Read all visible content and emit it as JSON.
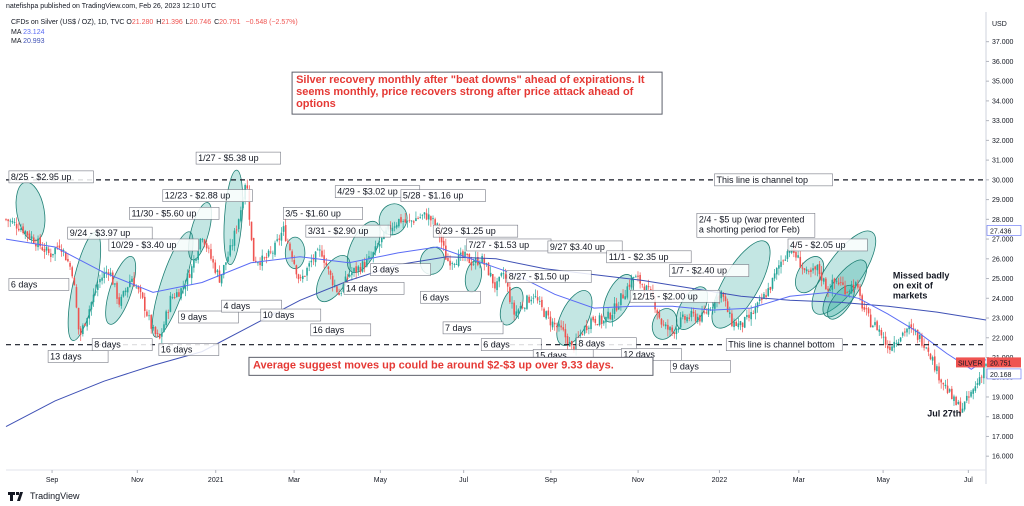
{
  "header": {
    "published": "natefishpa published on TradingView.com, Feb 26, 2023 12:10 UTC",
    "symbol": "CFDs on Silver (US$ / OZ), 1D, TVC",
    "ohlc": [
      {
        "k": "O",
        "v": "21.280"
      },
      {
        "k": "H",
        "v": "21.396"
      },
      {
        "k": "L",
        "v": "20.746"
      },
      {
        "k": "C",
        "v": "20.751"
      }
    ],
    "change": "−0.548 (−2.57%)",
    "ma1_label": "MA",
    "ma1_value": "23.124",
    "ma2_label": "MA",
    "ma2_value": "20.993"
  },
  "footer": {
    "brand": "TradingView"
  },
  "colors": {
    "up": "#26a69a",
    "down": "#ef5350",
    "ma_fast": "#5b6cf5",
    "ma_slow": "#3f51b5",
    "ellipse_fill": "#26a69a",
    "red_text": "#e53935",
    "price_tag": "#ef5350"
  },
  "chart_data": {
    "type": "candlestick",
    "currency_label": "USD",
    "ylim": [
      15.3,
      38.2
    ],
    "y_ticks": [
      "16.000",
      "17.000",
      "18.000",
      "19.000",
      "20.000",
      "21.000",
      "22.000",
      "23.000",
      "24.000",
      "25.000",
      "26.000",
      "27.000",
      "28.000",
      "29.000",
      "30.000",
      "31.000",
      "32.000",
      "33.000",
      "34.000",
      "35.000",
      "36.000",
      "37.000"
    ],
    "x_ticks": [
      {
        "label": "Sep",
        "t": 0.047
      },
      {
        "label": "Nov",
        "t": 0.134
      },
      {
        "label": "2021",
        "t": 0.214
      },
      {
        "label": "Mar",
        "t": 0.294
      },
      {
        "label": "May",
        "t": 0.382
      },
      {
        "label": "Jul",
        "t": 0.467
      },
      {
        "label": "Sep",
        "t": 0.556
      },
      {
        "label": "Nov",
        "t": 0.645
      },
      {
        "label": "2022",
        "t": 0.728
      },
      {
        "label": "Mar",
        "t": 0.809
      },
      {
        "label": "May",
        "t": 0.895
      },
      {
        "label": "Jul",
        "t": 0.982
      }
    ],
    "price_path": [
      [
        0.0,
        28.0
      ],
      [
        0.015,
        27.6
      ],
      [
        0.03,
        26.9
      ],
      [
        0.045,
        26.2
      ],
      [
        0.055,
        26.8
      ],
      [
        0.068,
        25.3
      ],
      [
        0.075,
        22.0
      ],
      [
        0.083,
        23.2
      ],
      [
        0.095,
        24.9
      ],
      [
        0.105,
        25.5
      ],
      [
        0.116,
        23.7
      ],
      [
        0.128,
        25.1
      ],
      [
        0.14,
        23.8
      ],
      [
        0.15,
        22.3
      ],
      [
        0.157,
        21.9
      ],
      [
        0.168,
        24.0
      ],
      [
        0.18,
        24.5
      ],
      [
        0.19,
        25.6
      ],
      [
        0.2,
        27.3
      ],
      [
        0.21,
        25.9
      ],
      [
        0.218,
        25.0
      ],
      [
        0.23,
        26.6
      ],
      [
        0.24,
        28.6
      ],
      [
        0.245,
        30.2
      ],
      [
        0.252,
        26.0
      ],
      [
        0.263,
        25.9
      ],
      [
        0.273,
        26.4
      ],
      [
        0.283,
        27.5
      ],
      [
        0.292,
        26.2
      ],
      [
        0.3,
        24.8
      ],
      [
        0.312,
        25.9
      ],
      [
        0.322,
        26.4
      ],
      [
        0.33,
        25.2
      ],
      [
        0.34,
        24.2
      ],
      [
        0.35,
        25.2
      ],
      [
        0.362,
        25.6
      ],
      [
        0.372,
        26.0
      ],
      [
        0.383,
        26.9
      ],
      [
        0.392,
        27.6
      ],
      [
        0.402,
        28.0
      ],
      [
        0.41,
        27.8
      ],
      [
        0.42,
        28.1
      ],
      [
        0.43,
        28.2
      ],
      [
        0.44,
        27.6
      ],
      [
        0.45,
        25.9
      ],
      [
        0.46,
        26.0
      ],
      [
        0.468,
        26.1
      ],
      [
        0.476,
        25.8
      ],
      [
        0.485,
        26.0
      ],
      [
        0.492,
        25.4
      ],
      [
        0.5,
        24.5
      ],
      [
        0.508,
        25.3
      ],
      [
        0.518,
        23.2
      ],
      [
        0.528,
        23.7
      ],
      [
        0.538,
        24.2
      ],
      [
        0.546,
        23.5
      ],
      [
        0.556,
        22.8
      ],
      [
        0.568,
        22.3
      ],
      [
        0.578,
        21.4
      ],
      [
        0.588,
        22.3
      ],
      [
        0.598,
        23.0
      ],
      [
        0.61,
        22.8
      ],
      [
        0.62,
        23.4
      ],
      [
        0.63,
        24.2
      ],
      [
        0.64,
        25.1
      ],
      [
        0.65,
        24.7
      ],
      [
        0.66,
        24.0
      ],
      [
        0.67,
        22.6
      ],
      [
        0.68,
        22.3
      ],
      [
        0.69,
        22.9
      ],
      [
        0.7,
        23.1
      ],
      [
        0.71,
        23.0
      ],
      [
        0.72,
        23.7
      ],
      [
        0.73,
        24.3
      ],
      [
        0.74,
        22.8
      ],
      [
        0.75,
        22.6
      ],
      [
        0.76,
        23.1
      ],
      [
        0.77,
        23.8
      ],
      [
        0.78,
        24.6
      ],
      [
        0.79,
        25.8
      ],
      [
        0.8,
        26.6
      ],
      [
        0.808,
        26.0
      ],
      [
        0.818,
        25.1
      ],
      [
        0.828,
        25.5
      ],
      [
        0.838,
        24.5
      ],
      [
        0.848,
        24.9
      ],
      [
        0.858,
        24.4
      ],
      [
        0.866,
        24.8
      ],
      [
        0.874,
        23.6
      ],
      [
        0.882,
        22.8
      ],
      [
        0.89,
        22.5
      ],
      [
        0.9,
        21.5
      ],
      [
        0.91,
        22.0
      ],
      [
        0.92,
        22.5
      ],
      [
        0.93,
        22.1
      ],
      [
        0.94,
        21.6
      ],
      [
        0.95,
        20.3
      ],
      [
        0.96,
        19.4
      ],
      [
        0.968,
        18.7
      ],
      [
        0.975,
        18.4
      ],
      [
        0.982,
        18.9
      ],
      [
        0.99,
        19.6
      ],
      [
        1.0,
        20.75
      ]
    ],
    "ma_fast": [
      [
        0.0,
        27.0
      ],
      [
        0.05,
        26.6
      ],
      [
        0.1,
        25.3
      ],
      [
        0.15,
        24.3
      ],
      [
        0.2,
        24.8
      ],
      [
        0.25,
        25.8
      ],
      [
        0.3,
        26.1
      ],
      [
        0.35,
        25.8
      ],
      [
        0.4,
        26.3
      ],
      [
        0.44,
        26.6
      ],
      [
        0.48,
        25.9
      ],
      [
        0.52,
        25.2
      ],
      [
        0.56,
        24.2
      ],
      [
        0.6,
        23.5
      ],
      [
        0.64,
        23.6
      ],
      [
        0.68,
        23.6
      ],
      [
        0.72,
        23.4
      ],
      [
        0.76,
        23.5
      ],
      [
        0.8,
        24.1
      ],
      [
        0.84,
        24.3
      ],
      [
        0.87,
        24.0
      ],
      [
        0.9,
        23.2
      ],
      [
        0.93,
        22.3
      ],
      [
        0.96,
        21.2
      ],
      [
        0.985,
        20.4
      ],
      [
        1.0,
        20.9
      ]
    ],
    "ma_slow": [
      [
        0.0,
        17.5
      ],
      [
        0.05,
        18.8
      ],
      [
        0.1,
        19.8
      ],
      [
        0.15,
        20.6
      ],
      [
        0.2,
        21.3
      ],
      [
        0.25,
        22.6
      ],
      [
        0.3,
        23.9
      ],
      [
        0.35,
        24.9
      ],
      [
        0.4,
        25.7
      ],
      [
        0.45,
        26.1
      ],
      [
        0.5,
        26.0
      ],
      [
        0.55,
        25.5
      ],
      [
        0.6,
        25.2
      ],
      [
        0.65,
        24.9
      ],
      [
        0.7,
        24.5
      ],
      [
        0.75,
        24.1
      ],
      [
        0.8,
        23.9
      ],
      [
        0.85,
        23.8
      ],
      [
        0.9,
        23.6
      ],
      [
        0.95,
        23.3
      ],
      [
        1.0,
        22.9
      ]
    ],
    "price_tags": [
      {
        "text": "SILVER",
        "value": 20.751,
        "color": "#ef5350"
      },
      {
        "text": "20.751",
        "value": 20.751,
        "color": "#ef5350"
      },
      {
        "text": "27.436",
        "value": 27.436,
        "color": "#ffffff"
      },
      {
        "text": "20.168",
        "value": 20.168,
        "color": "#ffffff"
      }
    ],
    "channel_lines": [
      {
        "value": 30.0,
        "label": "This line is channel top"
      },
      {
        "value": 21.65,
        "label": "This line is channel bottom"
      }
    ],
    "up_labels": [
      {
        "text": "8/25 - $2.95 up",
        "t": 0.005,
        "y": 30.05
      },
      {
        "text": "9/24 - $3.97 up",
        "t": 0.065,
        "y": 27.2
      },
      {
        "text": "10/29 - $3.40 up",
        "t": 0.107,
        "y": 26.6
      },
      {
        "text": "11/30 - $5.60 up",
        "t": 0.128,
        "y": 28.2
      },
      {
        "text": "12/23 - $2.88 up",
        "t": 0.162,
        "y": 29.1
      },
      {
        "text": "1/27 - $5.38 up",
        "t": 0.196,
        "y": 31.0
      },
      {
        "text": "3/5 - $1.60 up",
        "t": 0.285,
        "y": 28.2
      },
      {
        "text": "3/31 - $2.90 up",
        "t": 0.308,
        "y": 27.3
      },
      {
        "text": "4/29 - $3.02 up",
        "t": 0.338,
        "y": 29.3
      },
      {
        "text": "5/28 - $1.16 up",
        "t": 0.405,
        "y": 29.1
      },
      {
        "text": "6/29 - $1.25 up",
        "t": 0.438,
        "y": 27.3
      },
      {
        "text": "7/27 - $1.53 up",
        "t": 0.472,
        "y": 26.6
      },
      {
        "text": "8/27 - $1.50 up",
        "t": 0.513,
        "y": 25.0
      },
      {
        "text": "9/27 $3.40 up",
        "t": 0.555,
        "y": 26.5
      },
      {
        "text": "11/1 - $2.35 up",
        "t": 0.615,
        "y": 26.0
      },
      {
        "text": "1/7 - $2.40 up",
        "t": 0.679,
        "y": 25.3
      },
      {
        "text": "12/15 - $2.00 up",
        "t": 0.639,
        "y": 24.0
      },
      {
        "text": "2/4 - $5 up (war prevented a shorting period for Feb)",
        "t": 0.707,
        "y": 27.9
      },
      {
        "text": "4/5 - $2.05 up",
        "t": 0.8,
        "y": 26.6
      }
    ],
    "day_labels": [
      {
        "text": "6 days",
        "t": 0.005,
        "y": 24.6
      },
      {
        "text": "13 days",
        "t": 0.045,
        "y": 20.95
      },
      {
        "text": "8 days",
        "t": 0.09,
        "y": 21.55
      },
      {
        "text": "16 days",
        "t": 0.158,
        "y": 21.3
      },
      {
        "text": "9 days",
        "t": 0.178,
        "y": 22.95
      },
      {
        "text": "4 days",
        "t": 0.222,
        "y": 23.5
      },
      {
        "text": "10 days",
        "t": 0.262,
        "y": 23.05
      },
      {
        "text": "16 days",
        "t": 0.313,
        "y": 22.3
      },
      {
        "text": "14 days",
        "t": 0.347,
        "y": 24.4
      },
      {
        "text": "3 days",
        "t": 0.374,
        "y": 25.35
      },
      {
        "text": "6 days",
        "t": 0.425,
        "y": 23.95
      },
      {
        "text": "7 days",
        "t": 0.448,
        "y": 22.4
      },
      {
        "text": "6 days",
        "t": 0.487,
        "y": 21.55
      },
      {
        "text": "8 days",
        "t": 0.584,
        "y": 21.6
      },
      {
        "text": "15 days",
        "t": 0.54,
        "y": 21.0
      },
      {
        "text": "12 days",
        "t": 0.63,
        "y": 21.05
      },
      {
        "text": "9 days",
        "t": 0.68,
        "y": 20.45
      }
    ],
    "ellipses": [
      {
        "t": 0.025,
        "y": 28.4,
        "rt": 0.014,
        "ry": 1.5,
        "rot": -10
      },
      {
        "t": 0.08,
        "y": 24.6,
        "rt": 0.012,
        "ry": 2.8,
        "rot": 12
      },
      {
        "t": 0.117,
        "y": 24.4,
        "rt": 0.011,
        "ry": 1.8,
        "rot": 18
      },
      {
        "t": 0.17,
        "y": 24.7,
        "rt": 0.012,
        "ry": 2.8,
        "rot": 18
      },
      {
        "t": 0.198,
        "y": 27.4,
        "rt": 0.009,
        "ry": 1.5,
        "rot": 15
      },
      {
        "t": 0.232,
        "y": 28.1,
        "rt": 0.009,
        "ry": 2.4,
        "rot": 4
      },
      {
        "t": 0.295,
        "y": 26.3,
        "rt": 0.01,
        "ry": 0.8,
        "rot": 0
      },
      {
        "t": 0.334,
        "y": 25.0,
        "rt": 0.013,
        "ry": 1.3,
        "rot": 30
      },
      {
        "t": 0.365,
        "y": 26.6,
        "rt": 0.013,
        "ry": 1.4,
        "rot": 25
      },
      {
        "t": 0.395,
        "y": 28.0,
        "rt": 0.014,
        "ry": 0.8,
        "rot": 20
      },
      {
        "t": 0.435,
        "y": 25.9,
        "rt": 0.012,
        "ry": 0.7,
        "rot": 20
      },
      {
        "t": 0.477,
        "y": 25.1,
        "rt": 0.008,
        "ry": 0.8,
        "rot": 10
      },
      {
        "t": 0.516,
        "y": 23.6,
        "rt": 0.01,
        "ry": 1.0,
        "rot": 20
      },
      {
        "t": 0.58,
        "y": 23.0,
        "rt": 0.014,
        "ry": 1.5,
        "rot": 25
      },
      {
        "t": 0.625,
        "y": 24.0,
        "rt": 0.012,
        "ry": 1.3,
        "rot": 25
      },
      {
        "t": 0.672,
        "y": 22.7,
        "rt": 0.012,
        "ry": 0.8,
        "rot": 20
      },
      {
        "t": 0.7,
        "y": 23.5,
        "rt": 0.012,
        "ry": 1.2,
        "rot": 30
      },
      {
        "t": 0.75,
        "y": 24.7,
        "rt": 0.018,
        "ry": 2.5,
        "rot": 30
      },
      {
        "t": 0.82,
        "y": 25.2,
        "rt": 0.012,
        "ry": 1.0,
        "rot": 30
      },
      {
        "t": 0.855,
        "y": 25.3,
        "rt": 0.018,
        "ry": 2.5,
        "rot": 35
      },
      {
        "t": 0.856,
        "y": 24.5,
        "rt": 0.013,
        "ry": 1.7,
        "rot": 35
      },
      {
        "t": 0.852,
        "y": 23.8,
        "rt": 0.009,
        "ry": 1.0,
        "rot": 35
      }
    ],
    "notes": [
      {
        "lines": [
          "Silver recovery monthly after \"beat downs\" ahead of expirations.  It",
          "seems monthly, price recovers strong after price attack ahead of",
          "options"
        ],
        "kind": "red-box",
        "t": 0.296,
        "y": 34.9
      },
      {
        "lines": [
          "Average suggest moves up could be around $2-$3 up over 9.33 days."
        ],
        "kind": "red-box",
        "t": 0.252,
        "y": 20.45
      },
      {
        "lines": [
          "Missed badly",
          "on exit of",
          "markets"
        ],
        "kind": "plain",
        "t": 0.905,
        "y": 25.0
      },
      {
        "lines": [
          "Jul 27th"
        ],
        "kind": "plain-big",
        "t": 0.94,
        "y": 18.0
      }
    ]
  }
}
